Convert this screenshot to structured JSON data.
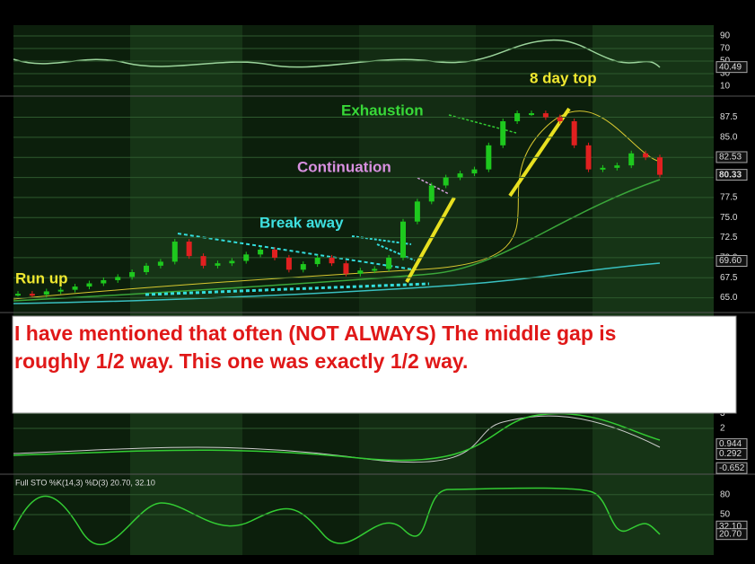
{
  "chart_data": [
    {
      "type": "indicator",
      "panel": "rsi",
      "ylim": [
        0,
        100
      ],
      "yticks": [
        10,
        30,
        50,
        70,
        90
      ],
      "last_value": {
        "value": 40.49,
        "label": "40.49"
      }
    },
    {
      "type": "candlestick",
      "panel": "price",
      "values": [
        65.5,
        65.4,
        65.8,
        66.0,
        66.4,
        66.8,
        67.2,
        67.6,
        68.2,
        69.0,
        69.5,
        72.0,
        70.2,
        69.0,
        69.3,
        69.6,
        70.4,
        71.0,
        70.0,
        68.5,
        69.2,
        70.0,
        69.3,
        68.0,
        68.4,
        68.6,
        70.0,
        74.5,
        77.0,
        79.0,
        80.0,
        80.5,
        81.0,
        84.0,
        87.0,
        88.0,
        88.0,
        87.5,
        87.0,
        84.0,
        81.0,
        81.2,
        81.5,
        83.0,
        82.5,
        80.33
      ],
      "color_up": "#1ec81e",
      "color_down": "#e02020",
      "ylim": [
        63.5,
        89.8
      ],
      "yticks": [
        {
          "value": 65,
          "label": "65.0"
        },
        {
          "value": 67.5,
          "label": "67.5"
        },
        {
          "value": 70,
          "label": "70.0"
        },
        {
          "value": 72.5,
          "label": "72.5"
        },
        {
          "value": 75,
          "label": "75.0"
        },
        {
          "value": 77.5,
          "label": "77.5"
        },
        {
          "value": 80,
          "label": "80.0"
        },
        {
          "value": 82.5,
          "label": "82.5"
        },
        {
          "value": 85,
          "label": "85.0"
        },
        {
          "value": 87.5,
          "label": "87.5"
        }
      ],
      "badges": [
        {
          "value": 82.53,
          "label": "82.53"
        },
        {
          "value": 80.33,
          "label": "80.33"
        },
        {
          "value": 69.6,
          "label": "69.60"
        }
      ],
      "annotations": [
        "Run up",
        "Break away",
        "Continuation",
        "Exhaustion",
        "8 day top"
      ],
      "note": [
        "I have mentioned that often  (NOT ALWAYS) The middle gap is",
        "roughly 1/2 way.  This one was exactly 1/2 way."
      ]
    },
    {
      "type": "indicator",
      "panel": "macd",
      "ylim": [
        -1,
        3.5
      ],
      "yticks": [
        2,
        3
      ],
      "badges": [
        {
          "value": 0.944,
          "label": "0.944"
        },
        {
          "value": 0.292,
          "label": "0.292"
        },
        {
          "value": -0.652,
          "label": "-0.652"
        }
      ]
    },
    {
      "type": "indicator",
      "panel": "sto",
      "title": "Full STO %K(14,3) %D(3) 20.70, 32.10",
      "ylim": [
        0,
        100
      ],
      "yticks": [
        50,
        80
      ],
      "badges": [
        {
          "value": 32.1,
          "label": "32.10"
        },
        {
          "value": 20.7,
          "label": "20.70"
        }
      ]
    }
  ]
}
